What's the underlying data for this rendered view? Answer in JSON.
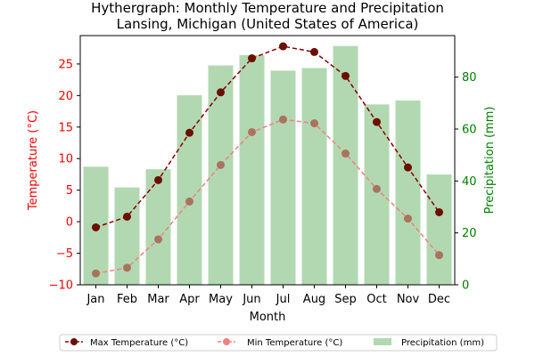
{
  "chart_data": {
    "type": "bar+line",
    "title": "Hythergraph: Monthly Temperature and Precipitation",
    "subtitle": "Lansing, Michigan (United States of America)",
    "xlabel": "Month",
    "ylabel_left": "Temperature (°C)",
    "ylabel_right": "Precipitation (mm)",
    "categories": [
      "Jan",
      "Feb",
      "Mar",
      "Apr",
      "May",
      "Jun",
      "Jul",
      "Aug",
      "Sep",
      "Oct",
      "Nov",
      "Dec"
    ],
    "ylim_left": [
      -10,
      29.5
    ],
    "ylim_right": [
      0,
      96
    ],
    "yticks_left": [
      -10,
      -5,
      0,
      5,
      10,
      15,
      20,
      25
    ],
    "yticks_right": [
      0,
      20,
      40,
      60,
      80
    ],
    "grid": false,
    "legend_position": "bottom-center",
    "series": [
      {
        "name": "Max Temperature (°C)",
        "kind": "line",
        "axis": "left",
        "color": "#8B0000",
        "marker_color": "#6B0F00",
        "values": [
          -0.9,
          0.8,
          6.6,
          14.1,
          20.5,
          25.9,
          27.8,
          26.9,
          23.1,
          15.8,
          8.6,
          1.5
        ]
      },
      {
        "name": "Min Temperature (°C)",
        "kind": "line",
        "axis": "left",
        "color": "#F08080",
        "marker_color": "#A9735D",
        "values": [
          -8.2,
          -7.3,
          -2.8,
          3.2,
          9.0,
          14.2,
          16.2,
          15.6,
          10.8,
          5.2,
          0.5,
          -5.3
        ]
      },
      {
        "name": "Precipitation (mm)",
        "kind": "bar",
        "axis": "right",
        "color": "#B2D8B2",
        "values": [
          45.5,
          37.5,
          44.5,
          73,
          84.5,
          88.5,
          82.5,
          83.5,
          92,
          69.5,
          71,
          42.5
        ]
      }
    ],
    "colors": {
      "left_axis": "#FF0000",
      "right_axis": "#008000"
    }
  }
}
